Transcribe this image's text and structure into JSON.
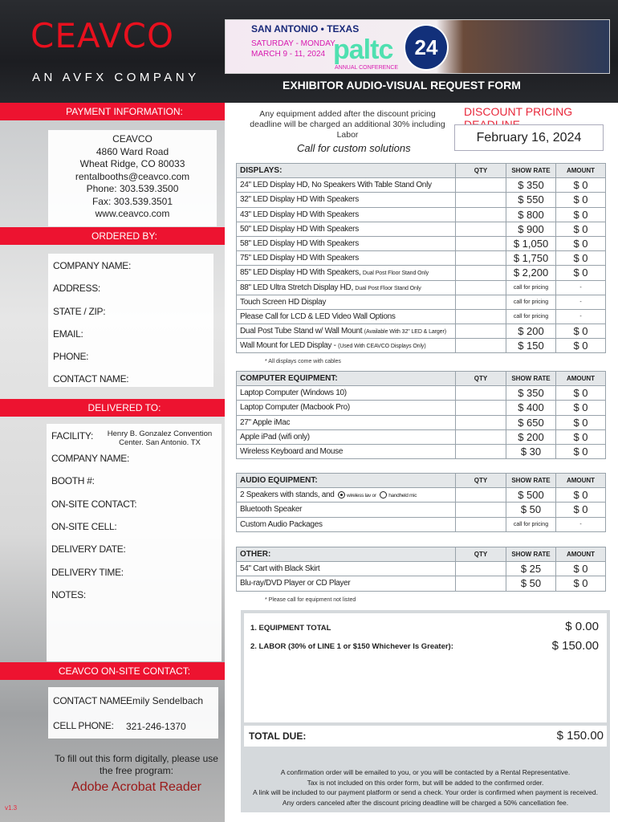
{
  "header": {
    "logo": "CEAVCO",
    "tagline": "AN AVFX COMPANY",
    "form_title": "EXHIBITOR AUDIO-VISUAL REQUEST FORM",
    "banner": {
      "location": "SAN ANTONIO • TEXAS",
      "days": "SATURDAY - MONDAY",
      "dates": "MARCH 9 - 11, 2024",
      "brand": "paltc",
      "year": "24",
      "subtitle": "ANNUAL CONFERENCE"
    }
  },
  "payment": {
    "title": "PAYMENT INFORMATION:",
    "lines": [
      "CEAVCO",
      "4860 Ward Road",
      "Wheat Ridge, CO 80033",
      "rentalbooths@ceavco.com",
      "Phone:  303.539.3500",
      "Fax: 303.539.3501",
      "www.ceavco.com"
    ]
  },
  "ordered_by": {
    "title": "ORDERED BY:",
    "fields": [
      "COMPANY NAME:",
      "ADDRESS:",
      "STATE / ZIP:",
      "EMAIL:",
      "PHONE:",
      "CONTACT NAME:"
    ]
  },
  "delivered_to": {
    "title": "DELIVERED TO:",
    "facility_label": "FACILITY:",
    "facility_value": "Henry B. Gonzalez Convention Center. San Antonio. TX",
    "fields": [
      "COMPANY NAME:",
      "BOOTH #:",
      "ON-SITE CONTACT:",
      "ON-SITE CELL:",
      "DELIVERY DATE:",
      "DELIVERY TIME:",
      "NOTES:"
    ]
  },
  "onsite": {
    "title": "CEAVCO ON-SITE CONTACT:",
    "contact_label": "CONTACT NAME:",
    "contact_value": "Emily Sendelbach",
    "phone_label": "CELL PHONE:",
    "phone_value": "321-246-1370"
  },
  "help": {
    "text": "To fill out this form digitally, please use the free program:",
    "program": "Adobe Acrobat Reader",
    "version": "v1.3"
  },
  "notice": "Any equipment added after the discount pricing deadline will be charged an additional 30% including Labor",
  "deadline": {
    "title": "DISCOUNT PRICING DEADLINE",
    "date": "February 16, 2024"
  },
  "custom": "Call for custom solutions",
  "columns": {
    "qty": "QTY",
    "rate": "SHOW RATE",
    "amount": "AMOUNT"
  },
  "tables": [
    {
      "category": "DISPLAYS:",
      "footnote": "* All displays come with cables",
      "rows": [
        {
          "item": "24\" LED Display HD, No Speakers With Table Stand Only",
          "rate": "$ 350",
          "amount": "$ 0"
        },
        {
          "item": "32\" LED Display HD With Speakers",
          "rate": "$ 550",
          "amount": "$ 0"
        },
        {
          "item": "43\" LED Display HD With Speakers",
          "rate": "$ 800",
          "amount": "$ 0"
        },
        {
          "item": "50\" LED Display HD With Speakers",
          "rate": "$ 900",
          "amount": "$ 0"
        },
        {
          "item": "58\" LED Display HD With Speakers",
          "rate": "$ 1,050",
          "amount": "$ 0"
        },
        {
          "item": "75\" LED Display HD With Speakers",
          "rate": "$ 1,750",
          "amount": "$ 0"
        },
        {
          "item": "85\" LED Display HD With Speakers,",
          "note": "Dual Post Floor Stand Only",
          "rate": "$ 2,200",
          "amount": "$ 0"
        },
        {
          "item": "88\" LED Ultra Stretch Display HD,",
          "note": "Dual Post Floor Stand Only",
          "rate": "call for pricing",
          "amount": "-"
        },
        {
          "item": "Touch Screen HD Display",
          "rate": "call for pricing",
          "amount": "-"
        },
        {
          "item": "Please Call for LCD & LED Video Wall Options",
          "rate": "call for pricing",
          "amount": "-"
        },
        {
          "item": "Dual Post Tube Stand w/ Wall Mount",
          "note": "(Available With 32\" LED & Larger)",
          "rate": "$ 200",
          "amount": "$ 0"
        },
        {
          "item": "Wall Mount for LED Display -",
          "note": "(Used With CEAVCO Displays Only)",
          "rate": "$ 150",
          "amount": "$ 0"
        }
      ]
    },
    {
      "category": "COMPUTER EQUIPMENT:",
      "rows": [
        {
          "item": "Laptop Computer (Windows 10)",
          "rate": "$ 350",
          "amount": "$ 0"
        },
        {
          "item": "Laptop Computer (Macbook Pro)",
          "rate": "$ 400",
          "amount": "$ 0"
        },
        {
          "item": "27\" Apple iMac",
          "rate": "$ 650",
          "amount": "$ 0"
        },
        {
          "item": "Apple iPad (wifi only)",
          "rate": "$ 200",
          "amount": "$ 0"
        },
        {
          "item": "Wireless Keyboard and Mouse",
          "rate": "$ 30",
          "amount": "$ 0"
        }
      ]
    },
    {
      "category": "AUDIO EQUIPMENT:",
      "rows": [
        {
          "item": "2 Speakers with stands, and",
          "options": [
            {
              "label": "wireless lav or",
              "selected": true
            },
            {
              "label": "handheld mic",
              "selected": false
            }
          ],
          "rate": "$ 500",
          "amount": "$ 0"
        },
        {
          "item": "Bluetooth Speaker",
          "rate": "$ 50",
          "amount": "$ 0"
        },
        {
          "item": "Custom Audio Packages",
          "rate": "call for pricing",
          "amount": "-"
        }
      ]
    },
    {
      "category": "OTHER:",
      "footnote": "* Please call for equipment not listed",
      "rows": [
        {
          "item": "54\" Cart with Black Skirt",
          "rate": "$ 25",
          "amount": "$ 0"
        },
        {
          "item": "Blu-ray/DVD Player or CD Player",
          "rate": "$ 50",
          "amount": "$ 0"
        }
      ]
    }
  ],
  "totals": {
    "equipment_label": "1.  EQUIPMENT TOTAL",
    "equipment_value": "$ 0.00",
    "labor_label": "2.  LABOR (30% of LINE 1 or $150 Whichever Is Greater):",
    "labor_value": "$ 150.00",
    "due_label": "TOTAL DUE:",
    "due_value": "$ 150.00"
  },
  "fine_print": [
    "A confirmation order will be emailed to you, or you will be contacted by a Rental Representative.",
    "Tax is not included on this order form, but will be added to the confirmed order.",
    "A link will be included to our payment platform or send a check. Your order is confirmed when payment is received. Any orders canceled after the discount pricing deadline will be charged a 50% cancellation fee."
  ],
  "colors": {
    "accent_red": "#ed1330",
    "header_bg": "#1c1d21",
    "table_header_bg": "#e4e7e9"
  }
}
